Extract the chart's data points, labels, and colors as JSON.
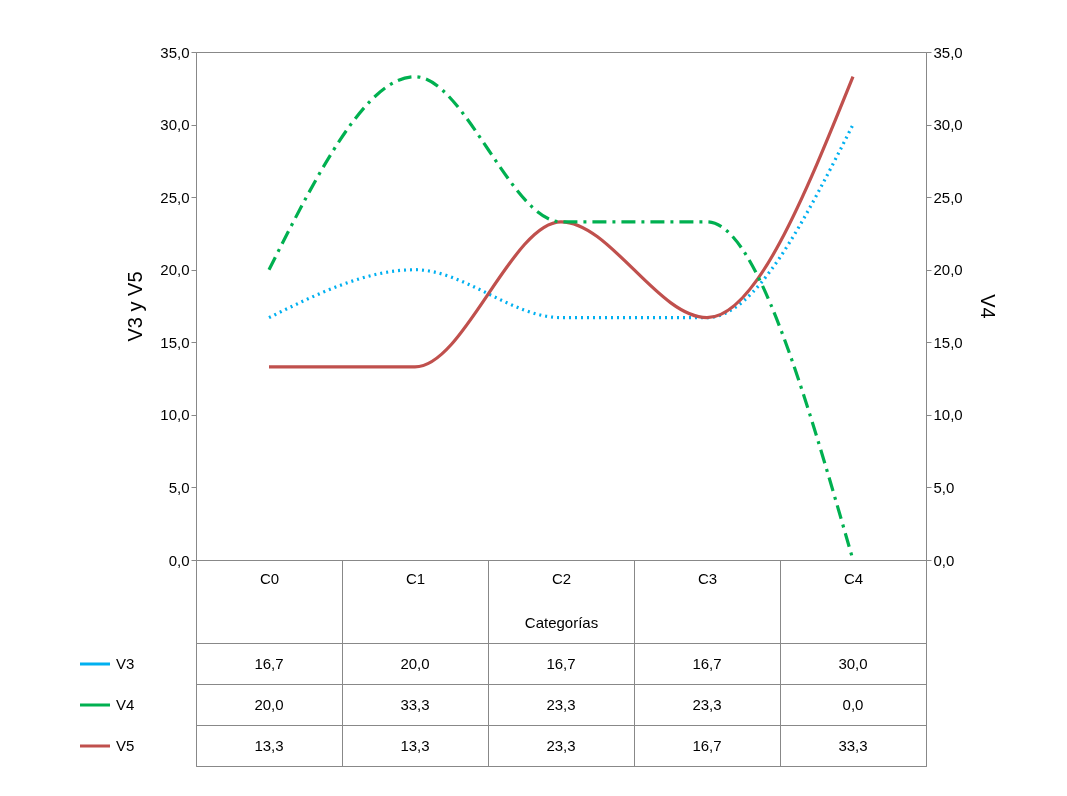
{
  "chart_data": {
    "type": "line",
    "xlabel": "Categorías",
    "ylabel": "V3 y V5",
    "y2label": "V4",
    "categories": [
      "C0",
      "C1",
      "C2",
      "C3",
      "C4"
    ],
    "series": [
      {
        "name": "V3",
        "color": "#00b0f0",
        "line_style": "dotted",
        "values": [
          16.7,
          20.0,
          16.7,
          16.7,
          30.0
        ],
        "value_labels": [
          "16,7",
          "20,0",
          "16,7",
          "16,7",
          "30,0"
        ]
      },
      {
        "name": "V4",
        "color": "#00b050",
        "line_style": "dashed",
        "axis": "y2",
        "values": [
          20.0,
          33.3,
          23.3,
          23.3,
          0.0
        ],
        "value_labels": [
          "20,0",
          "33,3",
          "23,3",
          "23,3",
          "0,0"
        ]
      },
      {
        "name": "V5",
        "color": "#c0504d",
        "line_style": "solid",
        "values": [
          13.3,
          13.3,
          23.3,
          16.7,
          33.3
        ],
        "value_labels": [
          "13,3",
          "13,3",
          "23,3",
          "16,7",
          "33,3"
        ]
      }
    ],
    "ylim": [
      0,
      35
    ],
    "yticks": [
      {
        "value": 0,
        "label": "0,0"
      },
      {
        "value": 5,
        "label": "5,0"
      },
      {
        "value": 10,
        "label": "10,0"
      },
      {
        "value": 15,
        "label": "15,0"
      },
      {
        "value": 20,
        "label": "20,0"
      },
      {
        "value": 25,
        "label": "25,0"
      },
      {
        "value": 30,
        "label": "30,0"
      },
      {
        "value": 35,
        "label": "35,0"
      }
    ],
    "y2lim": [
      0,
      35
    ],
    "y2ticks": [
      {
        "value": 0,
        "label": "0,0"
      },
      {
        "value": 5,
        "label": "5,0"
      },
      {
        "value": 10,
        "label": "10,0"
      },
      {
        "value": 15,
        "label": "15,0"
      },
      {
        "value": 20,
        "label": "20,0"
      },
      {
        "value": 25,
        "label": "25,0"
      },
      {
        "value": 30,
        "label": "30,0"
      },
      {
        "value": 35,
        "label": "35,0"
      }
    ],
    "grid": false,
    "legend": "bottom left"
  }
}
